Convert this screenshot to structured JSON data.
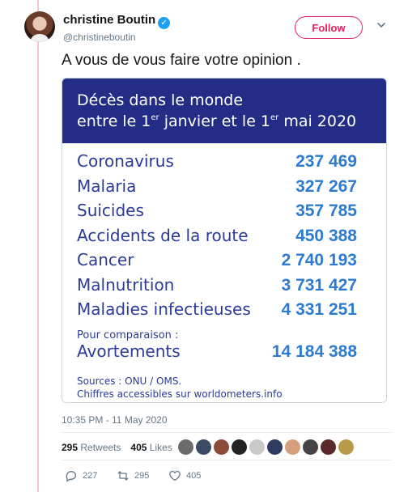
{
  "author": {
    "display_name": "christine Boutin",
    "handle": "@christineboutin",
    "follow_label": "Follow"
  },
  "tweet": {
    "text": "A vous de vous faire votre opinion .",
    "timestamp": "10:35 PM - 11 May 2020"
  },
  "media": {
    "title_line1": "Décès dans le monde",
    "title_line2_prefix": "entre le 1",
    "title_line2_sup1": "er",
    "title_line2_mid": " janvier et le 1",
    "title_line2_sup2": "er",
    "title_line2_suffix": " mai 2020",
    "rows": [
      {
        "label": "Coronavirus",
        "value": "237 469"
      },
      {
        "label": "Malaria",
        "value": "327 267"
      },
      {
        "label": "Suicides",
        "value": "357 785"
      },
      {
        "label": "Accidents de la route",
        "value": "450 388"
      },
      {
        "label": "Cancer",
        "value": "2 740 193"
      },
      {
        "label": "Malnutrition",
        "value": "3 731 427"
      },
      {
        "label": "Maladies infectieuses",
        "value": "4 331 251"
      }
    ],
    "comparison_note": "Pour comparaison :",
    "comparison_label": "Avortements",
    "comparison_value": "14 184 388",
    "sources_line1": "Sources : ONU / OMS.",
    "sources_line2": "Chiffres accessibles sur worldometers.info"
  },
  "engagement": {
    "retweets_count": "295",
    "retweets_label": "Retweets",
    "likes_count": "405",
    "likes_label": "Likes"
  },
  "likers_colors": [
    "#6b6b6b",
    "#3c4a66",
    "#8b4a3a",
    "#222222",
    "#c9c9c9",
    "#2f3a60",
    "#d6a07f",
    "#444444",
    "#5a2a2a",
    "#b99a4a"
  ],
  "actions": {
    "replies": "227",
    "retweets": "295",
    "likes": "405"
  },
  "colors": {
    "accent": "#e0245e",
    "media_header": "#232d86",
    "value_blue": "#2d7bd1"
  }
}
